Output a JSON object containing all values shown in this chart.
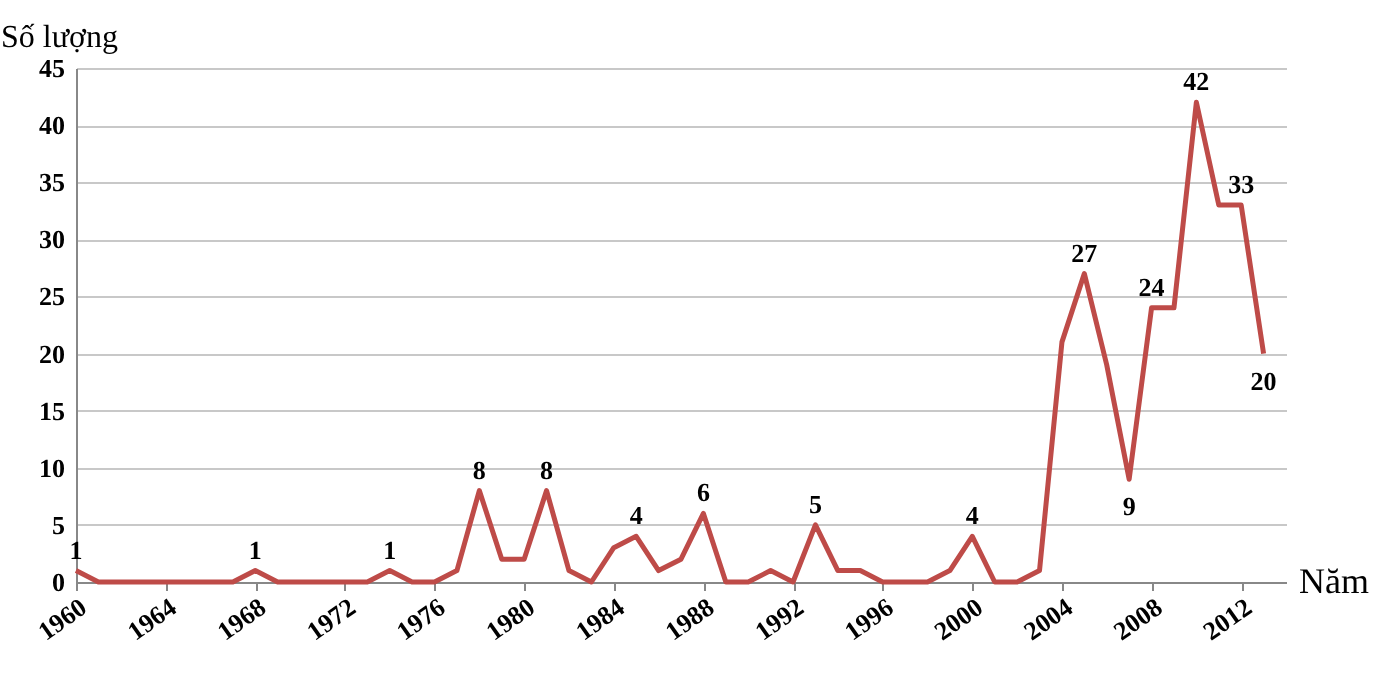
{
  "chart_data": {
    "type": "line",
    "ylabel": "Số lượng",
    "xlabel": "Năm",
    "x": [
      1960,
      1961,
      1962,
      1963,
      1964,
      1965,
      1966,
      1967,
      1968,
      1969,
      1970,
      1971,
      1972,
      1973,
      1974,
      1975,
      1976,
      1977,
      1978,
      1979,
      1980,
      1981,
      1982,
      1983,
      1984,
      1985,
      1986,
      1987,
      1988,
      1989,
      1990,
      1991,
      1992,
      1993,
      1994,
      1995,
      1996,
      1997,
      1998,
      1999,
      2000,
      2001,
      2002,
      2003,
      2004,
      2005,
      2006,
      2007,
      2008,
      2009,
      2010,
      2011,
      2012,
      2013
    ],
    "series": [
      {
        "color": "#be4b48",
        "values": [
          1,
          0,
          0,
          0,
          0,
          0,
          0,
          0,
          1,
          0,
          0,
          0,
          0,
          0,
          1,
          0,
          0,
          1,
          8,
          2,
          2,
          8,
          1,
          0,
          3,
          4,
          1,
          2,
          6,
          0,
          0,
          1,
          0,
          5,
          1,
          1,
          0,
          0,
          0,
          1,
          4,
          0,
          0,
          1,
          21,
          27,
          19,
          9,
          24,
          24,
          42,
          33,
          33,
          20
        ],
        "value_labels": [
          "1",
          null,
          null,
          null,
          null,
          null,
          null,
          null,
          "1",
          null,
          null,
          null,
          null,
          null,
          "1",
          null,
          null,
          null,
          "8",
          null,
          null,
          "8",
          null,
          null,
          null,
          "4",
          null,
          null,
          "6",
          null,
          null,
          null,
          null,
          "5",
          null,
          null,
          null,
          null,
          null,
          null,
          "4",
          null,
          null,
          null,
          null,
          "27",
          null,
          "9",
          "24",
          null,
          "42",
          null,
          "33",
          "20"
        ]
      }
    ],
    "xlim": [
      1960,
      2014
    ],
    "xticks": [
      1960,
      1964,
      1968,
      1972,
      1976,
      1980,
      1984,
      1988,
      1992,
      1996,
      2000,
      2004,
      2008,
      2012
    ],
    "ylim": [
      0,
      45
    ],
    "yticks": [
      0,
      5,
      10,
      15,
      20,
      25,
      30,
      35,
      40,
      45
    ],
    "grid": "y",
    "marker": "none",
    "line_style": "solid"
  }
}
